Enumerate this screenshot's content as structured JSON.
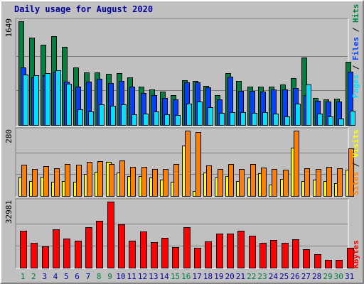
{
  "chart_title": "Daily usage for August 2020",
  "colors": {
    "hits": "#008040",
    "files": "#0040ff",
    "pages": "#00e0ff",
    "visits": "#ffff00",
    "sites": "#ff8000",
    "kbytes": "#ff0000",
    "weekend_label": "#008040",
    "weekday_label": "#0000a0",
    "title": "#0000a0"
  },
  "chart_data": [
    {
      "type": "bar",
      "categories": [
        "1",
        "2",
        "3",
        "4",
        "5",
        "6",
        "7",
        "8",
        "9",
        "10",
        "11",
        "12",
        "13",
        "14",
        "15",
        "16",
        "17",
        "18",
        "19",
        "20",
        "21",
        "22",
        "23",
        "24",
        "25",
        "26",
        "27",
        "28",
        "29",
        "30",
        "31"
      ],
      "weekend_categories": [
        "1",
        "2",
        "8",
        "9",
        "15",
        "16",
        "22",
        "23",
        "29",
        "30"
      ],
      "y_max_label": "1649",
      "ylim": [
        0,
        1649
      ],
      "legend": [
        "Pages",
        "Files",
        "Hits"
      ],
      "series": [
        {
          "name": "Hits",
          "values": [
            1649,
            1390,
            1280,
            1410,
            1240,
            910,
            840,
            840,
            810,
            830,
            760,
            610,
            570,
            530,
            470,
            710,
            700,
            620,
            480,
            830,
            700,
            610,
            610,
            610,
            640,
            740,
            1070,
            430,
            410,
            420,
            1010
          ]
        },
        {
          "name": "Files",
          "values": [
            920,
            760,
            790,
            850,
            690,
            610,
            690,
            730,
            670,
            700,
            610,
            510,
            470,
            430,
            410,
            680,
            680,
            600,
            410,
            770,
            540,
            540,
            530,
            560,
            570,
            590,
            480,
            380,
            370,
            370,
            850
          ]
        },
        {
          "name": "Pages",
          "values": [
            800,
            790,
            830,
            870,
            660,
            250,
            210,
            330,
            310,
            330,
            170,
            180,
            220,
            170,
            160,
            340,
            370,
            280,
            190,
            200,
            200,
            190,
            200,
            180,
            130,
            340,
            640,
            180,
            130,
            100,
            230
          ]
        }
      ]
    },
    {
      "type": "bar",
      "categories": [
        "1",
        "2",
        "3",
        "4",
        "5",
        "6",
        "7",
        "8",
        "9",
        "10",
        "11",
        "12",
        "13",
        "14",
        "15",
        "16",
        "17",
        "18",
        "19",
        "20",
        "21",
        "22",
        "23",
        "24",
        "25",
        "26",
        "27",
        "28",
        "29",
        "30",
        "31"
      ],
      "y_max_label": "280",
      "ylim": [
        0,
        280
      ],
      "legend": [
        "Sites",
        "Visits"
      ],
      "series": [
        {
          "name": "Visits",
          "values": [
            83,
            65,
            83,
            62,
            63,
            62,
            95,
            105,
            145,
            100,
            86,
            85,
            80,
            70,
            61,
            215,
            20,
            100,
            80,
            86,
            63,
            80,
            98,
            48,
            72,
            208,
            65,
            70,
            65,
            56,
            112
          ]
        },
        {
          "name": "Sites",
          "values": [
            133,
            117,
            128,
            120,
            138,
            135,
            145,
            148,
            138,
            153,
            124,
            126,
            115,
            117,
            136,
            280,
            275,
            130,
            117,
            137,
            117,
            136,
            123,
            117,
            112,
            280,
            120,
            115,
            125,
            118,
            203
          ]
        }
      ]
    },
    {
      "type": "bar",
      "categories": [
        "1",
        "2",
        "3",
        "4",
        "5",
        "6",
        "7",
        "8",
        "9",
        "10",
        "11",
        "12",
        "13",
        "14",
        "15",
        "16",
        "17",
        "18",
        "19",
        "20",
        "21",
        "22",
        "23",
        "24",
        "25",
        "26",
        "27",
        "28",
        "29",
        "30",
        "31"
      ],
      "y_max_label": "32981",
      "ylim": [
        0,
        32981
      ],
      "legend": [
        "KBytes"
      ],
      "series": [
        {
          "name": "KBytes",
          "values": [
            18500,
            12300,
            10600,
            19200,
            14400,
            13500,
            20100,
            23500,
            32981,
            21500,
            13300,
            18000,
            12900,
            14900,
            10300,
            20200,
            10000,
            13100,
            17000,
            16900,
            18500,
            16000,
            12500,
            13800,
            12500,
            14100,
            9300,
            6800,
            3900,
            4000,
            9900
          ]
        }
      ]
    }
  ]
}
